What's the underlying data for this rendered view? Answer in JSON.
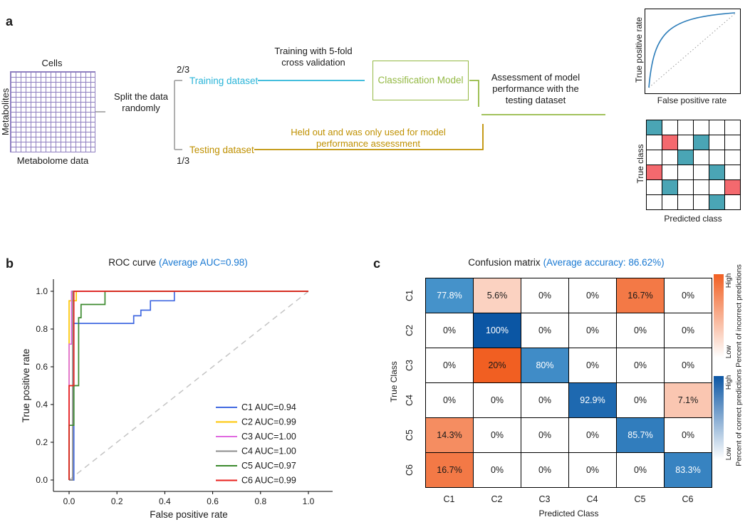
{
  "colors": {
    "accent_blue": "#1878d2",
    "training_cyan": "#29b4d8",
    "testing_gold": "#bf9000",
    "model_green": "#94b944",
    "arrow_gray": "#a8a8a8",
    "grid_purple": "#8f7fc0",
    "mini_teal": "#4aa5b5",
    "mini_red": "#f4696e",
    "mini_curve_blue": "#2b7cb9",
    "diagonal_dash_gray": "#c4c4c4",
    "incorrect_high": "#f15f22",
    "correct_high": "#0b56a4",
    "correct_low": "#5aa7d8"
  },
  "panel_a": {
    "label": "a",
    "cells_label": "Cells",
    "metabolites_label": "Metabolites",
    "metabolome_label": "Metabolome data",
    "split_label": "Split the data randomly",
    "fraction_top": "2/3",
    "fraction_bottom": "1/3",
    "training_dataset": "Training dataset",
    "testing_dataset": "Testing dataset",
    "training_note": "Training with 5-fold cross validation",
    "testing_note": "Held out and was only used for model performance assessment",
    "model_label": "Classification Model",
    "assessment_note": "Assessment of model performance with the testing dataset",
    "mini_roc": {
      "ylabel": "True positive rate",
      "xlabel": "False positive rate"
    },
    "mini_matrix": {
      "ylabel": "True class",
      "xlabel": "Predicted class",
      "cells": [
        [
          "t",
          "",
          "",
          "",
          "",
          ""
        ],
        [
          "",
          "r",
          "",
          "t",
          "",
          ""
        ],
        [
          "",
          "",
          "t",
          "",
          "",
          ""
        ],
        [
          "r",
          "",
          "",
          "",
          "t",
          ""
        ],
        [
          "",
          "t",
          "",
          "",
          "",
          "r"
        ],
        [
          "",
          "",
          "",
          "",
          "t",
          ""
        ]
      ]
    }
  },
  "panel_b_label": "b",
  "panel_c_label": "c",
  "chart_data": [
    {
      "type": "line",
      "name": "roc-curves",
      "title": "ROC curve",
      "title_highlight": "(Average AUC=0.98)",
      "xlabel": "False positive rate",
      "ylabel": "True positive rate",
      "xlim": [
        0,
        1
      ],
      "ylim": [
        0,
        1
      ],
      "xticks": [
        "0.0",
        "0.2",
        "0.4",
        "0.6",
        "0.8",
        "1.0"
      ],
      "yticks": [
        "0.0",
        "0.2",
        "0.4",
        "0.6",
        "0.8",
        "1.0"
      ],
      "diagonal_reference": true,
      "legend_position": "lower right",
      "series": [
        {
          "label": "C1 AUC=0.94",
          "color": "#4169e1",
          "points": [
            [
              0,
              0
            ],
            [
              0.02,
              0
            ],
            [
              0.02,
              0.83
            ],
            [
              0.27,
              0.83
            ],
            [
              0.27,
              0.87
            ],
            [
              0.3,
              0.87
            ],
            [
              0.3,
              0.9
            ],
            [
              0.34,
              0.9
            ],
            [
              0.34,
              0.95
            ],
            [
              0.44,
              0.95
            ],
            [
              0.44,
              1
            ],
            [
              1,
              1
            ]
          ]
        },
        {
          "label": "C2 AUC=0.99",
          "color": "#fdc500",
          "points": [
            [
              0,
              0
            ],
            [
              0,
              0.95
            ],
            [
              0.03,
              0.95
            ],
            [
              0.03,
              1
            ],
            [
              1,
              1
            ]
          ]
        },
        {
          "label": "C3 AUC=1.00",
          "color": "#e06ae0",
          "points": [
            [
              0,
              0
            ],
            [
              0,
              0.72
            ],
            [
              0.01,
              0.72
            ],
            [
              0.01,
              1
            ],
            [
              1,
              1
            ]
          ]
        },
        {
          "label": "C4 AUC=1.00",
          "color": "#8c8c8c",
          "points": [
            [
              0,
              0
            ],
            [
              0.015,
              0
            ],
            [
              0.015,
              1
            ],
            [
              1,
              1
            ]
          ]
        },
        {
          "label": "C5 AUC=0.97",
          "color": "#3c8a2e",
          "points": [
            [
              0,
              0
            ],
            [
              0,
              0.29
            ],
            [
              0.02,
              0.29
            ],
            [
              0.02,
              0.5
            ],
            [
              0.04,
              0.5
            ],
            [
              0.04,
              0.86
            ],
            [
              0.05,
              0.86
            ],
            [
              0.05,
              0.93
            ],
            [
              0.15,
              0.93
            ],
            [
              0.15,
              1
            ],
            [
              1,
              1
            ]
          ]
        },
        {
          "label": "C6 AUC=0.99",
          "color": "#e8211d",
          "points": [
            [
              0,
              0
            ],
            [
              0,
              0.5
            ],
            [
              0.02,
              0.5
            ],
            [
              0.02,
              1
            ],
            [
              1,
              1
            ]
          ]
        }
      ]
    },
    {
      "type": "heatmap",
      "name": "confusion-matrix",
      "title": "Confusion matrix",
      "title_highlight": "(Average accuracy: 86.62%)",
      "xlabel": "Predicted Class",
      "ylabel": "True Class",
      "categories": [
        "C1",
        "C2",
        "C3",
        "C4",
        "C5",
        "C6"
      ],
      "values": [
        [
          77.8,
          5.6,
          0,
          0,
          16.7,
          0
        ],
        [
          0,
          100,
          0,
          0,
          0,
          0
        ],
        [
          0,
          20,
          80,
          0,
          0,
          0
        ],
        [
          0,
          0,
          0,
          92.9,
          0,
          7.1
        ],
        [
          14.3,
          0,
          0,
          0,
          85.7,
          0
        ],
        [
          16.7,
          0,
          0,
          0,
          0,
          83.3
        ]
      ],
      "cell_labels": [
        [
          "77.8%",
          "5.6%",
          "0%",
          "0%",
          "16.7%",
          "0%"
        ],
        [
          "0%",
          "100%",
          "0%",
          "0%",
          "0%",
          "0%"
        ],
        [
          "0%",
          "20%",
          "80%",
          "0%",
          "0%",
          "0%"
        ],
        [
          "0%",
          "0%",
          "0%",
          "92.9%",
          "0%",
          "7.1%"
        ],
        [
          "14.3%",
          "0%",
          "0%",
          "0%",
          "85.7%",
          "0%"
        ],
        [
          "16.7%",
          "0%",
          "0%",
          "0%",
          "0%",
          "83.3%"
        ]
      ],
      "colorbars": [
        {
          "high": "High",
          "low": "Low",
          "label": "Percent of incorrect predictions",
          "color": "#f15f22"
        },
        {
          "high": "High",
          "low": "Low",
          "label": "Percent of correct predictions",
          "color": "#0b56a4"
        }
      ]
    }
  ]
}
